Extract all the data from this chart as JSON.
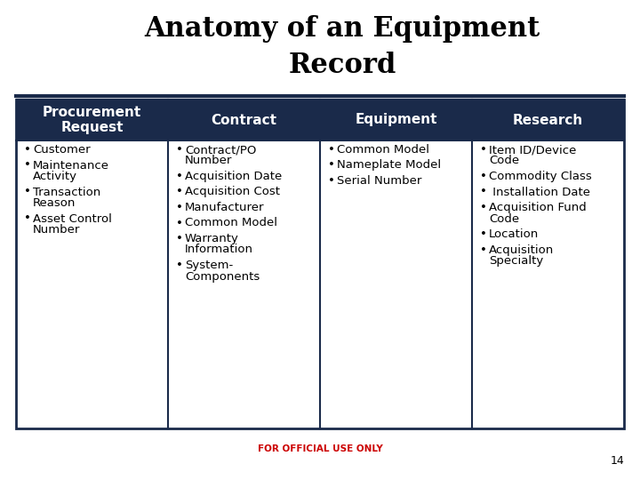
{
  "title": "Anatomy of an Equipment\nRecord",
  "title_fontsize": 22,
  "title_font_family": "serif",
  "background_color": "#ffffff",
  "header_bg_color": "#1a2a4a",
  "header_text_color": "#ffffff",
  "header_fontsize": 11,
  "body_fontsize": 9.5,
  "table_border_color": "#1a2a4a",
  "footer_text": "FOR OFFICIAL USE ONLY",
  "footer_color": "#cc0000",
  "page_number": "14",
  "columns": [
    {
      "header": "Procurement\nRequest",
      "items": [
        "Customer",
        "Maintenance\nActivity",
        "Transaction\nReason",
        "Asset Control\nNumber"
      ]
    },
    {
      "header": "Contract",
      "items": [
        "Contract/PO\nNumber",
        "Acquisition Date",
        "Acquisition Cost",
        "Manufacturer",
        "Common Model",
        "Warranty\nInformation",
        "System-\nComponents"
      ]
    },
    {
      "header": "Equipment",
      "items": [
        "Common Model",
        "Nameplate Model",
        "Serial Number"
      ]
    },
    {
      "header": "Research",
      "items": [
        "Item ID/Device\nCode",
        "Commodity Class",
        " Installation Date",
        "Acquisition Fund\nCode",
        "Location",
        "Acquisition\nSpecialty"
      ]
    }
  ]
}
